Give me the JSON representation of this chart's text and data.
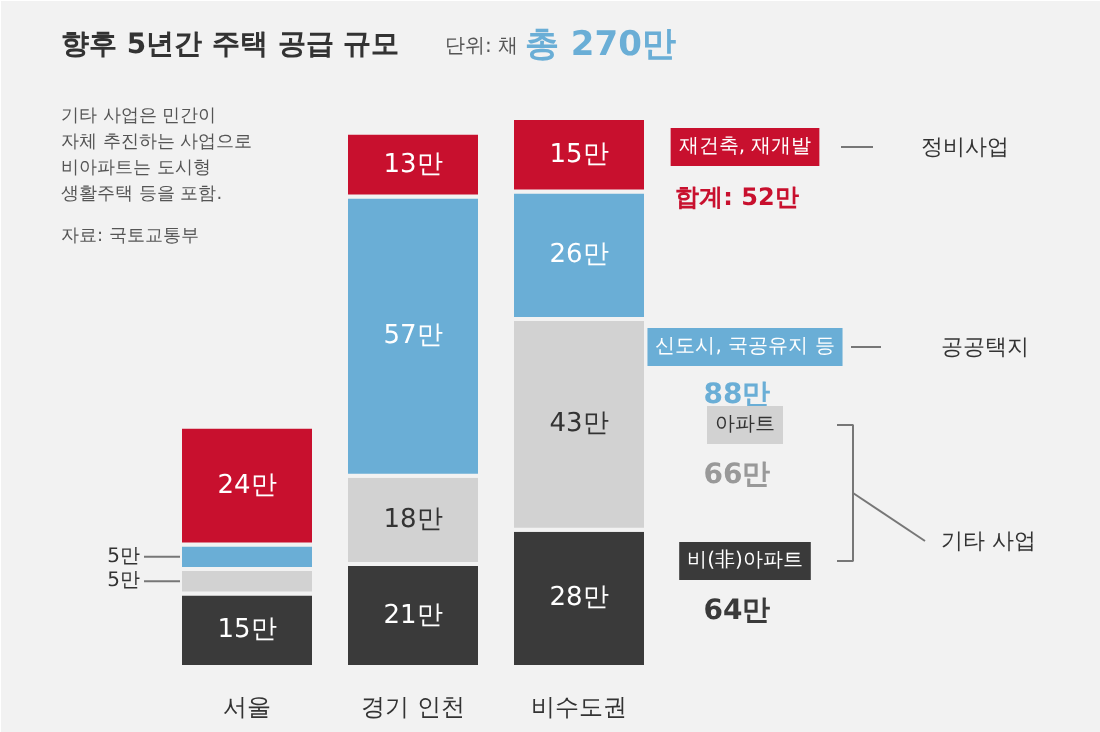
{
  "chart_data": {
    "type": "bar",
    "stacked": true,
    "title": "향후 5년간 주택 공급 규모",
    "subtitle": "단위: 채",
    "categories": [
      "서울",
      "경기 인천",
      "비수도권"
    ],
    "series": [
      {
        "name": "비(非)아파트",
        "color": "#3a3a3a",
        "values": [
          15,
          21,
          28
        ],
        "value_labels": [
          "15만",
          "21만",
          "28만"
        ]
      },
      {
        "name": "아파트",
        "color": "#d2d2d2",
        "values": [
          5,
          18,
          43
        ],
        "value_labels": [
          "5만",
          "18만",
          "43만"
        ]
      },
      {
        "name": "신도시, 국공유지 등",
        "color": "#6aaed6",
        "values": [
          5,
          57,
          26
        ],
        "value_labels": [
          "5만",
          "57만",
          "26만"
        ]
      },
      {
        "name": "재건축, 재개발",
        "color": "#c8102e",
        "values": [
          24,
          13,
          15
        ],
        "value_labels": [
          "24만",
          "13만",
          "15만"
        ]
      }
    ],
    "annotations": [
      "총 270만",
      "기타 사업은 민간이\n자체 추진하는 사업으로\n비아파트는 도시형\n생활주택 등을 포함.",
      "자료: 국토교통부",
      "64만",
      "66만",
      "88만",
      "합계: 52만",
      "기타 사업",
      "공공택지",
      "정비사업"
    ],
    "relative": false,
    "legend": false,
    "grid": false
  }
}
